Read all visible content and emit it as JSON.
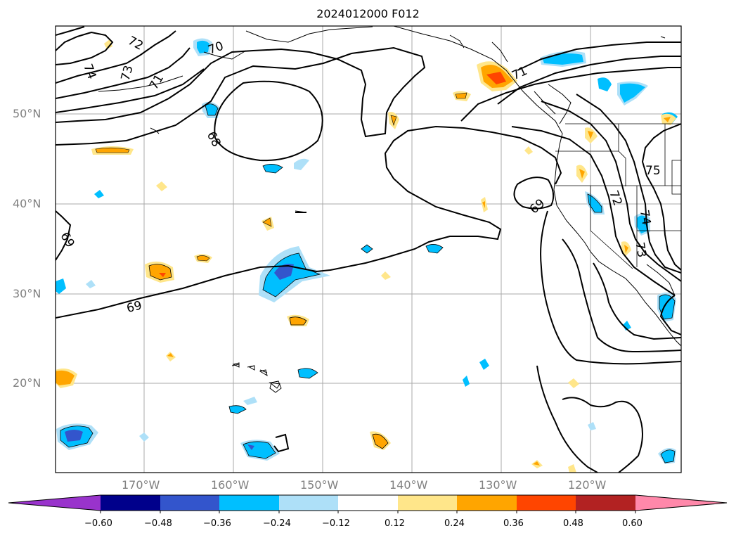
{
  "title": "2024012000 F012",
  "map": {
    "lat_labels": [
      "50°N",
      "40°N",
      "30°N",
      "20°N"
    ],
    "lon_labels": [
      "170°W",
      "160°W",
      "150°W",
      "140°W",
      "130°W",
      "120°W"
    ],
    "contour_labels": [
      "72",
      "74",
      "73",
      "71",
      "70",
      "68",
      "69",
      "69",
      "69",
      "71",
      "75",
      "72",
      "74",
      "73"
    ],
    "colorbar": {
      "tick_labels": [
        "−0.60",
        "−0.48",
        "−0.36",
        "−0.24",
        "−0.12",
        "0.12",
        "0.24",
        "0.36",
        "0.48",
        "0.60"
      ],
      "colors": [
        "#9933cc",
        "#00008b",
        "#3355cc",
        "#00bfff",
        "#aee0f8",
        "#ffffff",
        "#ffe68a",
        "#ffa500",
        "#ff4500",
        "#b22222",
        "#ff88aa"
      ]
    }
  }
}
